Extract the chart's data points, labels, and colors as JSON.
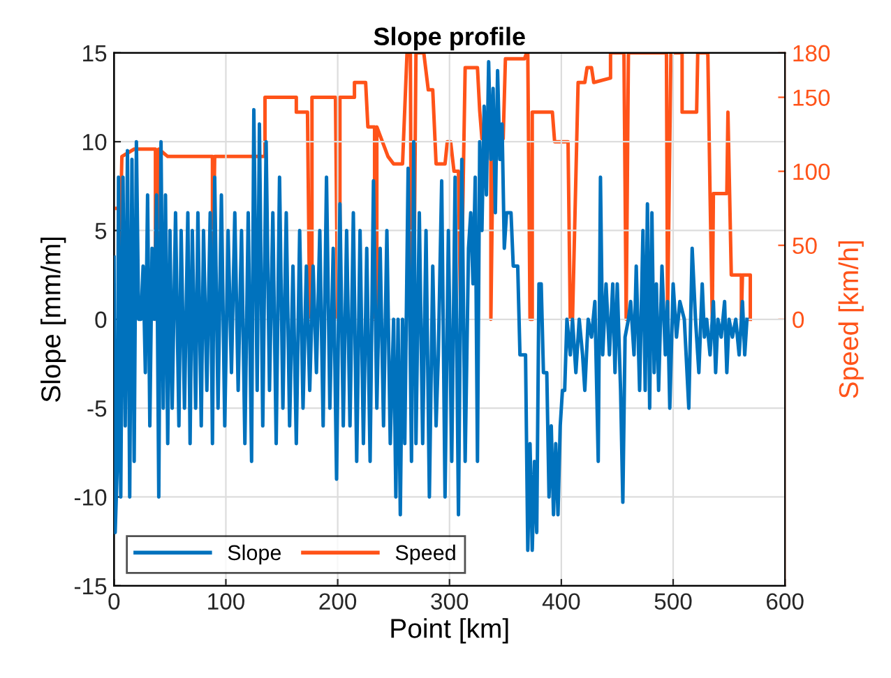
{
  "chart_data": {
    "type": "line",
    "title": "Slope profile",
    "xlabel": "Point [km]",
    "ylabel": "Slope [mm/m]",
    "y2label": "Speed [km/h]",
    "xlim": [
      0,
      600
    ],
    "xticks": [
      0,
      100,
      200,
      300,
      400,
      500,
      600
    ],
    "ylim": [
      -15,
      15
    ],
    "yticks": [
      -15,
      -10,
      -5,
      0,
      5,
      10,
      15
    ],
    "y2lim": [
      -180,
      180
    ],
    "y2ticks": [
      0,
      50,
      100,
      150,
      180
    ],
    "grid": true,
    "legend": "bottom left",
    "line_style": "solid",
    "marker": "none",
    "series": [
      {
        "name": "Slope",
        "color": "#0072bd",
        "x": [
          0,
          1,
          3,
          4,
          6,
          8,
          10,
          12,
          14,
          16,
          18,
          20,
          22,
          24,
          26,
          28,
          30,
          32,
          34,
          36,
          38,
          40,
          42,
          44,
          46,
          48,
          50,
          52,
          55,
          58,
          60,
          63,
          66,
          68,
          70,
          73,
          75,
          78,
          80,
          83,
          86,
          88,
          90,
          93,
          96,
          99,
          102,
          105,
          108,
          111,
          114,
          117,
          120,
          123,
          125,
          128,
          130,
          133,
          136,
          139,
          142,
          145,
          148,
          151,
          154,
          157,
          160,
          163,
          166,
          169,
          172,
          175,
          178,
          181,
          184,
          187,
          190,
          193,
          196,
          199,
          202,
          205,
          208,
          211,
          214,
          217,
          220,
          223,
          226,
          229,
          232,
          235,
          238,
          241,
          244,
          247,
          250,
          252,
          254,
          256,
          258,
          260,
          263,
          266,
          268,
          270,
          273,
          276,
          279,
          282,
          285,
          288,
          290,
          293,
          296,
          299,
          302,
          305,
          308,
          311,
          314,
          317,
          319,
          321,
          323,
          325,
          327,
          329,
          331,
          333,
          335,
          337,
          339,
          341,
          343,
          345,
          347,
          349,
          351,
          355,
          357,
          361,
          363,
          368,
          370,
          372,
          374,
          376,
          378,
          380,
          382,
          384,
          387,
          389,
          391,
          393,
          395,
          397,
          399,
          401,
          403,
          405,
          408,
          410,
          413,
          416,
          419,
          421,
          424,
          427,
          430,
          433,
          435,
          437,
          440,
          443,
          446,
          448,
          450,
          453,
          455,
          457,
          460,
          462,
          465,
          467,
          470,
          473,
          475,
          477,
          479,
          481,
          483,
          485,
          487,
          490,
          493,
          495,
          497,
          500,
          503,
          506,
          510,
          514,
          517,
          520,
          523,
          526,
          528,
          530,
          533,
          536,
          538,
          540,
          543,
          546,
          548,
          550,
          553,
          556,
          559,
          562,
          564,
          566
        ],
        "values": [
          3.5,
          -12,
          -8,
          8,
          -10,
          8,
          -6,
          9.5,
          -10,
          9,
          -8,
          10,
          0,
          0,
          3,
          -3,
          7,
          -6,
          4,
          0,
          7,
          -10,
          10,
          -5,
          7,
          -7,
          5,
          -5,
          6,
          -6,
          5,
          -5,
          6,
          -7,
          5,
          -5,
          6,
          -6,
          5,
          -4,
          6,
          -7,
          8,
          -5,
          7,
          -6,
          5,
          -3,
          6,
          -4,
          5,
          -7,
          6,
          -8,
          11.8,
          -4,
          11,
          -6,
          10,
          -4,
          6,
          -7,
          8,
          -5,
          6,
          -6,
          3,
          -7,
          5,
          -5,
          3,
          -4,
          3,
          -3,
          5,
          -6,
          8,
          -5,
          4,
          -9,
          6.5,
          -6,
          5,
          -6,
          6,
          -8,
          5,
          -7,
          4,
          -8,
          7.8,
          -5,
          4,
          -6,
          5,
          -7,
          0,
          -10,
          0,
          -11,
          0,
          -7,
          8.5,
          -8,
          10,
          -7,
          6,
          -7,
          5,
          -10,
          3,
          -6,
          -2,
          7.8,
          -10,
          5,
          -8,
          8,
          -11,
          9,
          -8,
          4,
          6,
          2,
          8,
          -8,
          10,
          5,
          12,
          7,
          14.5,
          9,
          13,
          6,
          14,
          9,
          11,
          4,
          6,
          6,
          3,
          3,
          -2,
          -2,
          -13,
          -7,
          -13,
          -8,
          -12,
          2,
          2,
          -3,
          -3,
          -10,
          -6,
          -11,
          -7,
          -11,
          -6,
          -4,
          -4,
          0,
          -2,
          0,
          -3,
          0,
          -2,
          -4,
          0,
          -1,
          1,
          -8,
          8,
          -2,
          2,
          -2,
          2,
          -3,
          2,
          -4,
          -10.3,
          -1,
          0,
          1,
          -2,
          3,
          -4,
          5,
          -4,
          6.5,
          -5,
          6,
          -3,
          2,
          -4,
          3,
          -2,
          1,
          -5,
          2,
          -1,
          1,
          0,
          -5,
          4,
          0,
          -3,
          2,
          -1,
          0,
          -2,
          1,
          -3,
          0,
          -1,
          1,
          -3,
          0,
          -1,
          0,
          -2,
          1,
          -2,
          0
        ]
      },
      {
        "name": "Speed",
        "color": "#ff5319",
        "axis": "y2",
        "x": [
          0,
          4,
          4,
          7,
          18,
          37,
          37,
          40,
          40,
          48,
          88,
          88,
          90,
          135,
          135,
          163,
          163,
          173,
          175,
          177,
          177,
          198,
          200,
          202,
          202,
          215,
          215,
          225,
          227,
          233,
          233,
          235,
          235,
          245,
          250,
          258,
          262,
          265,
          266,
          268,
          270,
          277,
          281,
          285,
          288,
          296,
          298,
          301,
          304,
          308,
          310,
          312,
          314,
          325,
          327,
          329,
          337,
          337,
          339,
          348,
          350,
          367,
          369,
          370,
          372,
          374,
          374,
          392,
          394,
          406,
          408,
          410,
          415,
          421,
          423,
          427,
          429,
          444,
          444,
          456,
          458,
          460,
          494,
          495,
          498,
          508,
          508,
          521,
          522,
          531,
          533,
          535,
          536,
          548,
          549,
          552,
          561,
          561,
          562,
          569,
          569
        ],
        "values": [
          75,
          75,
          0,
          110,
          115,
          115,
          0,
          0,
          115,
          110,
          110,
          0,
          110,
          110,
          150,
          150,
          140,
          140,
          0,
          0,
          150,
          150,
          0,
          0,
          150,
          150,
          160,
          160,
          130,
          130,
          0,
          0,
          130,
          110,
          105,
          105,
          180,
          180,
          0,
          0,
          180,
          180,
          155,
          155,
          105,
          105,
          120,
          120,
          100,
          100,
          0,
          81,
          170,
          170,
          141,
          122,
          122,
          0,
          122,
          122,
          176,
          176,
          180,
          180,
          0,
          0,
          140,
          140,
          120,
          120,
          0,
          0,
          160,
          160,
          170,
          170,
          160,
          163,
          180,
          180,
          0,
          180,
          180,
          0,
          180,
          180,
          140,
          140,
          180,
          180,
          85,
          0,
          85,
          85,
          140,
          30,
          30,
          0,
          30,
          30,
          0
        ]
      }
    ]
  }
}
